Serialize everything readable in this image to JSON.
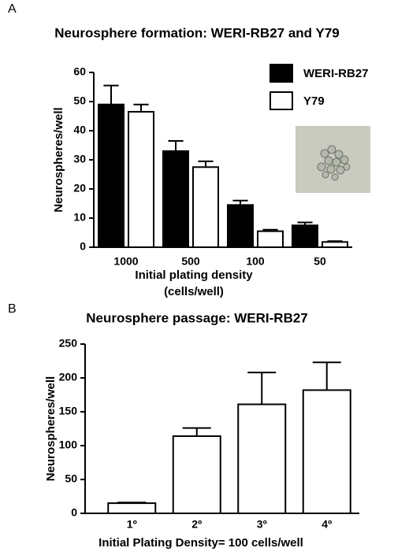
{
  "chart_data": [
    {
      "type": "bar",
      "panel": "A",
      "title": "Neurosphere formation: WERI-RB27 and Y79",
      "categories": [
        "1000",
        "500",
        "100",
        "50"
      ],
      "series": [
        {
          "name": "WERI-RB27",
          "color": "#000000",
          "values": [
            49,
            33,
            14.5,
            7.5
          ],
          "errors": [
            6.5,
            3.5,
            1.5,
            1
          ]
        },
        {
          "name": "Y79",
          "color": "#ffffff",
          "values": [
            46.5,
            27.5,
            5.5,
            1.8
          ],
          "errors": [
            2.5,
            2,
            0.5,
            0.3
          ]
        }
      ],
      "xlabel": [
        "Initial plating density",
        "(cells/well)"
      ],
      "ylabel": "Neurospheres/well",
      "ylim": [
        0,
        60
      ],
      "yticks": [
        0,
        10,
        20,
        30,
        40,
        50,
        60
      ],
      "legend": "top-right"
    },
    {
      "type": "bar",
      "panel": "B",
      "title": "Neurosphere passage: WERI-RB27",
      "categories": [
        "1º",
        "2º",
        "3º",
        "4º"
      ],
      "series": [
        {
          "color": "#ffffff",
          "values": [
            15,
            114,
            161,
            182
          ],
          "errors": [
            1,
            12,
            47,
            41
          ]
        }
      ],
      "xlabel": [
        "Initial Plating Density= 100 cells/well"
      ],
      "ylabel": "Neurospheres/well",
      "ylim": [
        0,
        250
      ],
      "yticks": [
        0,
        50,
        100,
        150,
        200,
        250
      ]
    }
  ]
}
